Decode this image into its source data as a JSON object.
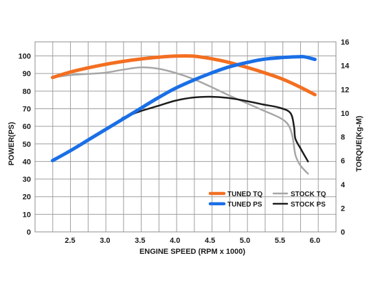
{
  "chart_data": {
    "type": "line",
    "xlabel": "ENGINE SPEED (RPM x 1000)",
    "ylabel_left": "POWER(PS)",
    "ylabel_right": "TORQUE(Kg-M)",
    "xlim": [
      2.0,
      6.3
    ],
    "ylim_left": [
      0,
      108
    ],
    "ylim_right": [
      0,
      16
    ],
    "x_ticks": [
      "2.5",
      "3.0",
      "3.5",
      "4.0",
      "4.5",
      "5.0",
      "5.5",
      "6.0"
    ],
    "x_tick_values": [
      2.5,
      3.0,
      3.5,
      4.0,
      4.5,
      5.0,
      5.5,
      6.0
    ],
    "y_left_ticks": [
      "0",
      "10",
      "20",
      "30",
      "40",
      "50",
      "60",
      "70",
      "80",
      "90",
      "100"
    ],
    "y_left_tick_values": [
      0,
      10,
      20,
      30,
      40,
      50,
      60,
      70,
      80,
      90,
      100
    ],
    "y_right_ticks": [
      "0",
      "2",
      "4",
      "6",
      "8",
      "10",
      "12",
      "14",
      "16"
    ],
    "y_right_tick_values": [
      0,
      2,
      4,
      6,
      8,
      10,
      12,
      14,
      16
    ],
    "grid": true,
    "legend_position": "bottom-right",
    "series": [
      {
        "name": "TUNED TQ",
        "axis": "right",
        "color": "#f36f21",
        "width": 5,
        "points": [
          [
            2.25,
            13.0
          ],
          [
            2.5,
            13.45
          ],
          [
            2.75,
            13.8
          ],
          [
            3.0,
            14.1
          ],
          [
            3.25,
            14.35
          ],
          [
            3.5,
            14.55
          ],
          [
            3.75,
            14.7
          ],
          [
            4.0,
            14.8
          ],
          [
            4.25,
            14.8
          ],
          [
            4.5,
            14.6
          ],
          [
            4.75,
            14.3
          ],
          [
            5.0,
            13.9
          ],
          [
            5.25,
            13.45
          ],
          [
            5.5,
            12.95
          ],
          [
            5.75,
            12.3
          ],
          [
            6.0,
            11.55
          ]
        ]
      },
      {
        "name": "TUNED PS",
        "axis": "left",
        "color": "#1a6fe6",
        "width": 5,
        "points": [
          [
            2.25,
            40.5
          ],
          [
            2.5,
            46
          ],
          [
            2.75,
            52
          ],
          [
            3.0,
            58
          ],
          [
            3.25,
            64
          ],
          [
            3.5,
            70
          ],
          [
            3.75,
            76
          ],
          [
            4.0,
            81.5
          ],
          [
            4.25,
            86
          ],
          [
            4.5,
            90
          ],
          [
            4.75,
            93.5
          ],
          [
            5.0,
            96
          ],
          [
            5.25,
            98
          ],
          [
            5.5,
            99
          ],
          [
            5.75,
            99.5
          ],
          [
            5.85,
            99.5
          ],
          [
            6.0,
            98
          ]
        ]
      },
      {
        "name": "STOCK TQ",
        "axis": "right",
        "color": "#a6a6a6",
        "width": 2.5,
        "points": [
          [
            2.25,
            13.0
          ],
          [
            2.5,
            13.2
          ],
          [
            2.75,
            13.3
          ],
          [
            3.0,
            13.4
          ],
          [
            3.25,
            13.65
          ],
          [
            3.5,
            13.85
          ],
          [
            3.75,
            13.75
          ],
          [
            4.0,
            13.4
          ],
          [
            4.25,
            12.9
          ],
          [
            4.5,
            12.25
          ],
          [
            4.75,
            11.55
          ],
          [
            5.0,
            10.9
          ],
          [
            5.25,
            10.25
          ],
          [
            5.5,
            9.6
          ],
          [
            5.62,
            9.0
          ],
          [
            5.68,
            8.0
          ],
          [
            5.72,
            6.5
          ],
          [
            5.78,
            5.7
          ],
          [
            5.85,
            5.2
          ],
          [
            5.9,
            4.9
          ]
        ]
      },
      {
        "name": "STOCK PS",
        "axis": "left",
        "color": "#1c1c1c",
        "width": 2.5,
        "points": [
          [
            3.25,
            64.8
          ],
          [
            3.5,
            68.5
          ],
          [
            3.75,
            71.5
          ],
          [
            4.0,
            74.5
          ],
          [
            4.25,
            76.3
          ],
          [
            4.5,
            76.8
          ],
          [
            4.75,
            76.2
          ],
          [
            5.0,
            74.5
          ],
          [
            5.25,
            72.5
          ],
          [
            5.5,
            70.5
          ],
          [
            5.65,
            67.5
          ],
          [
            5.7,
            60
          ],
          [
            5.72,
            53
          ],
          [
            5.8,
            47
          ],
          [
            5.9,
            40
          ]
        ]
      }
    ]
  }
}
